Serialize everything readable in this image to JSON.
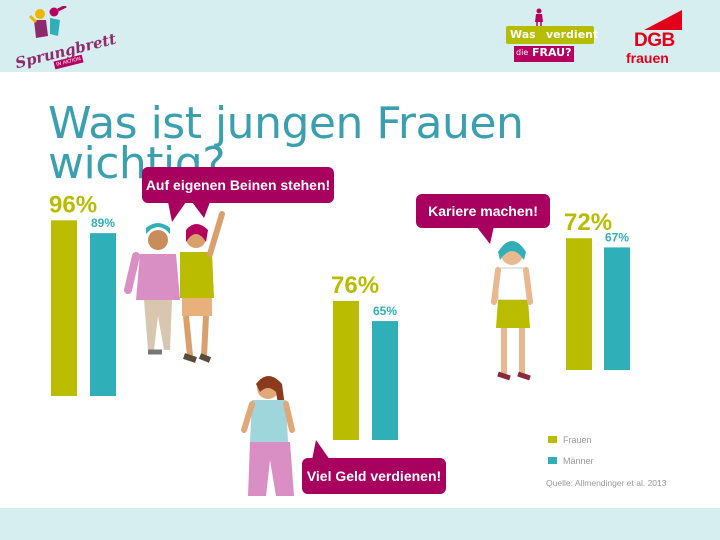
{
  "header": {
    "logo_left_text": "Sprungbrett",
    "logo_left_badge": "IN AKTION",
    "logo_mid_word1": "Was",
    "logo_mid_word2": "verdient",
    "logo_mid_word3": "die",
    "logo_mid_word4": "FRAU?",
    "logo_right_text": "DGB",
    "logo_right_sub": "frauen"
  },
  "title": "Was ist jungen Frauen wichtig?",
  "colors": {
    "frauen": "#b9bc00",
    "maenner": "#2fb0b8",
    "bubble": "#a8005f",
    "title": "#3aa0b0",
    "bar_bg": "#d7eef0"
  },
  "chart_data": {
    "type": "bar",
    "categories": [
      "Auf eigenen Beinen stehen!",
      "Viel Geld verdienen!",
      "Kariere machen!"
    ],
    "series": [
      {
        "name": "Frauen",
        "values": [
          96,
          76,
          72
        ]
      },
      {
        "name": "Männer",
        "values": [
          89,
          65,
          67
        ]
      }
    ],
    "value_labels": [
      {
        "frauen": "96%",
        "maenner": "89%"
      },
      {
        "frauen": "76%",
        "maenner": "65%"
      },
      {
        "frauen": "72%",
        "maenner": "67%"
      }
    ],
    "ylim": [
      0,
      100
    ],
    "legend_position": "bottom-right",
    "source": "Quelle: Allmendinger et al. 2013"
  }
}
